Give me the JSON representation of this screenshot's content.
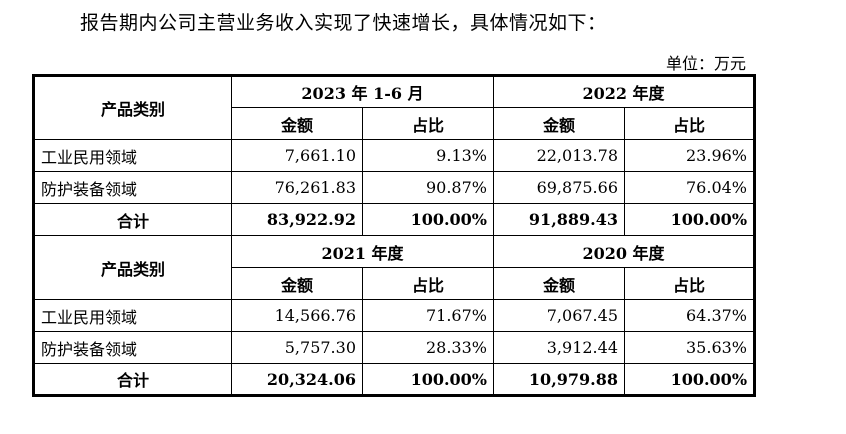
{
  "intro": "报告期内公司主营业务收入实现了快速增长，具体情况如下：",
  "unit": "单位：万元",
  "block1": {
    "category_header": "产品类别",
    "period_a": "2023 年 1-6 月",
    "period_b": "2022 年度",
    "amount": "金额",
    "ratio": "占比",
    "rows": [
      {
        "label": "工业民用领域",
        "a_amount": "7,661.10",
        "a_ratio": "9.13%",
        "b_amount": "22,013.78",
        "b_ratio": "23.96%"
      },
      {
        "label": "防护装备领域",
        "a_amount": "76,261.83",
        "a_ratio": "90.87%",
        "b_amount": "69,875.66",
        "b_ratio": "76.04%"
      }
    ],
    "total": {
      "label": "合计",
      "a_amount": "83,922.92",
      "a_ratio": "100.00%",
      "b_amount": "91,889.43",
      "b_ratio": "100.00%"
    }
  },
  "block2": {
    "category_header": "产品类别",
    "period_a": "2021 年度",
    "period_b": "2020 年度",
    "amount": "金额",
    "ratio": "占比",
    "rows": [
      {
        "label": "工业民用领域",
        "a_amount": "14,566.76",
        "a_ratio": "71.67%",
        "b_amount": "7,067.45",
        "b_ratio": "64.37%"
      },
      {
        "label": "防护装备领域",
        "a_amount": "5,757.30",
        "a_ratio": "28.33%",
        "b_amount": "3,912.44",
        "b_ratio": "35.63%"
      }
    ],
    "total": {
      "label": "合计",
      "a_amount": "20,324.06",
      "a_ratio": "100.00%",
      "b_amount": "10,979.88",
      "b_ratio": "100.00%"
    }
  }
}
